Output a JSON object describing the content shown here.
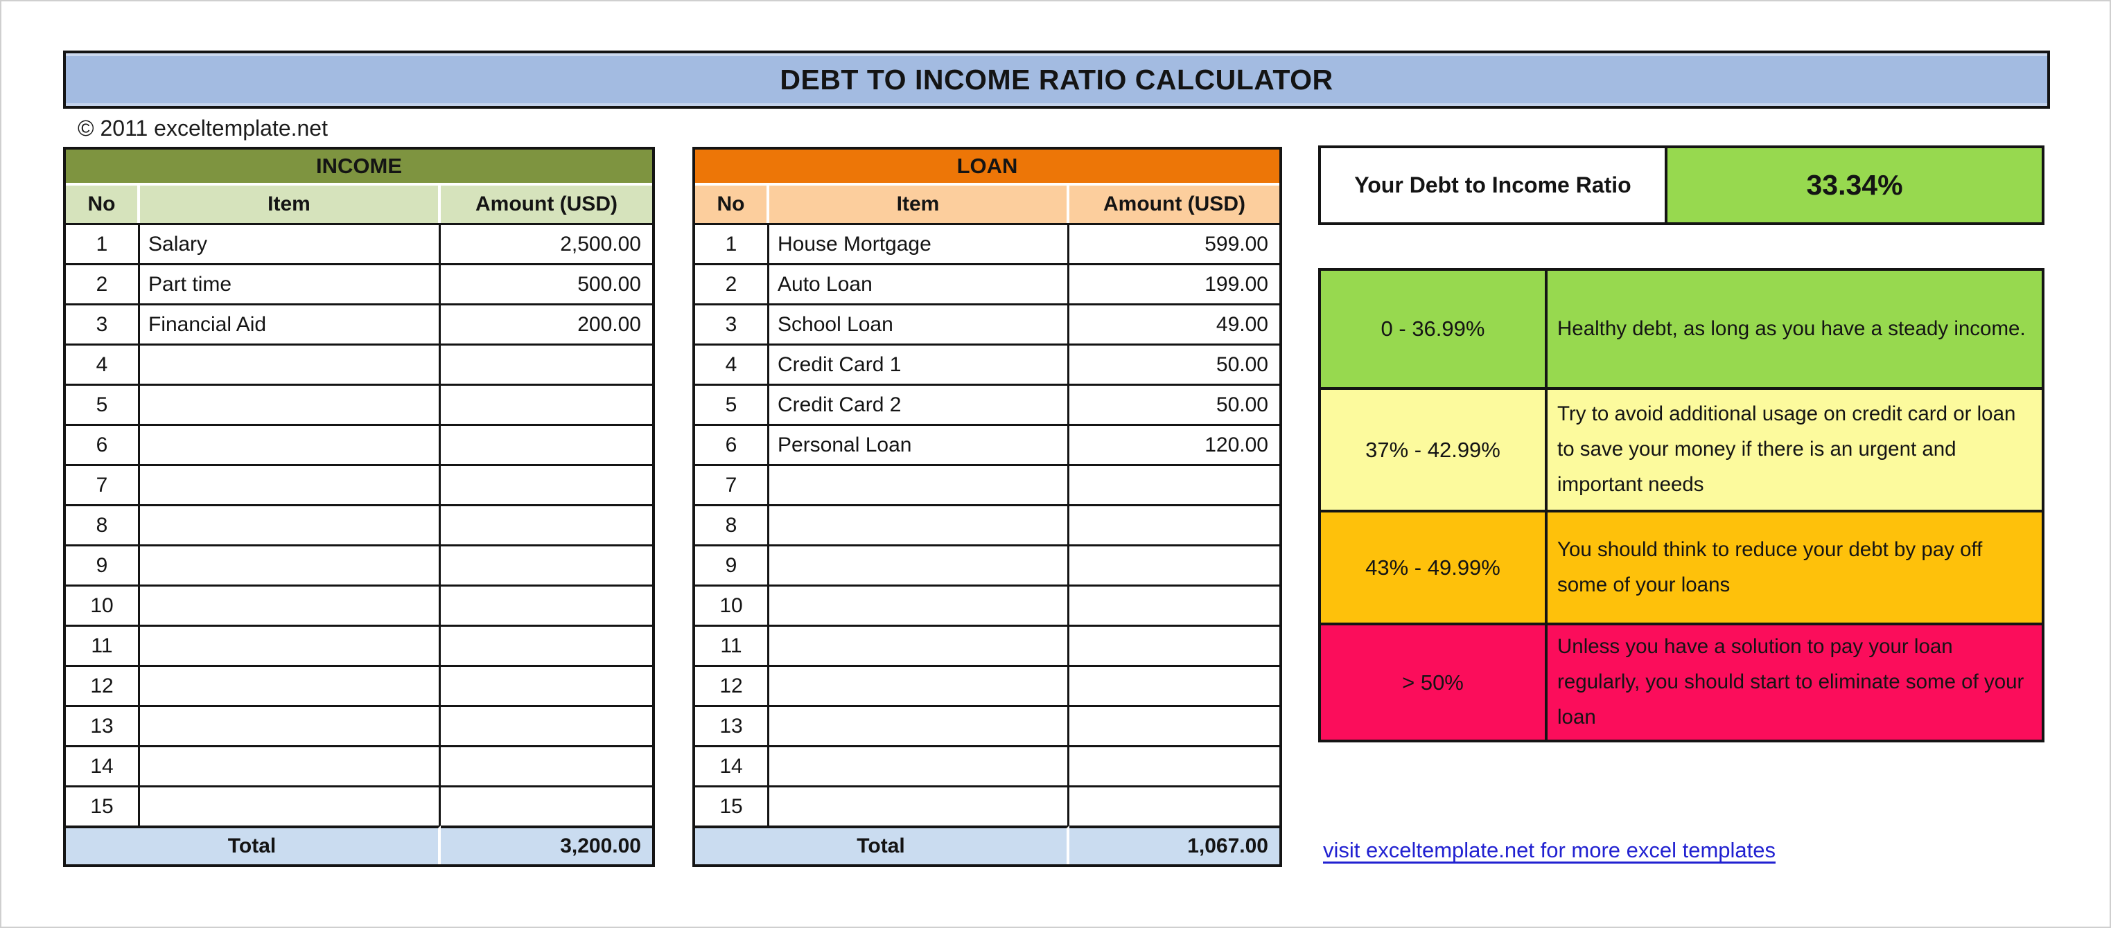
{
  "page": {
    "title": "DEBT TO INCOME RATIO CALCULATOR",
    "copyright": "© 2011 exceltemplate.net",
    "link": "visit exceltemplate.net for more excel templates"
  },
  "colors": {
    "title-bg": "#A3BBE1",
    "income-header": "#7E9440",
    "income-subheader": "#D6E3BC",
    "loan-header": "#ED7607",
    "loan-subheader": "#FCCE9D",
    "total-bg": "#CADCF0",
    "ratio-green": "#97D94F",
    "legend-yellow": "#FCFA9D",
    "legend-amber": "#FEC10B",
    "legend-pink": "#FB0D5B",
    "link-blue": "#2121D1"
  },
  "income_table": {
    "title": "INCOME",
    "columns": [
      "No",
      "Item",
      "Amount (USD)"
    ],
    "rows": [
      {
        "no": "1",
        "item": "Salary",
        "amount": "2,500.00"
      },
      {
        "no": "2",
        "item": "Part time",
        "amount": "500.00"
      },
      {
        "no": "3",
        "item": "Financial Aid",
        "amount": "200.00"
      },
      {
        "no": "4",
        "item": "",
        "amount": ""
      },
      {
        "no": "5",
        "item": "",
        "amount": ""
      },
      {
        "no": "6",
        "item": "",
        "amount": ""
      },
      {
        "no": "7",
        "item": "",
        "amount": ""
      },
      {
        "no": "8",
        "item": "",
        "amount": ""
      },
      {
        "no": "9",
        "item": "",
        "amount": ""
      },
      {
        "no": "10",
        "item": "",
        "amount": ""
      },
      {
        "no": "11",
        "item": "",
        "amount": ""
      },
      {
        "no": "12",
        "item": "",
        "amount": ""
      },
      {
        "no": "13",
        "item": "",
        "amount": ""
      },
      {
        "no": "14",
        "item": "",
        "amount": ""
      },
      {
        "no": "15",
        "item": "",
        "amount": ""
      }
    ],
    "total_label": "Total",
    "total_amount": "3,200.00"
  },
  "loan_table": {
    "title": "LOAN",
    "columns": [
      "No",
      "Item",
      "Amount (USD)"
    ],
    "rows": [
      {
        "no": "1",
        "item": "House Mortgage",
        "amount": "599.00"
      },
      {
        "no": "2",
        "item": "Auto Loan",
        "amount": "199.00"
      },
      {
        "no": "3",
        "item": "School Loan",
        "amount": "49.00"
      },
      {
        "no": "4",
        "item": "Credit Card 1",
        "amount": "50.00"
      },
      {
        "no": "5",
        "item": "Credit Card 2",
        "amount": "50.00"
      },
      {
        "no": "6",
        "item": "Personal Loan",
        "amount": "120.00"
      },
      {
        "no": "7",
        "item": "",
        "amount": ""
      },
      {
        "no": "8",
        "item": "",
        "amount": ""
      },
      {
        "no": "9",
        "item": "",
        "amount": ""
      },
      {
        "no": "10",
        "item": "",
        "amount": ""
      },
      {
        "no": "11",
        "item": "",
        "amount": ""
      },
      {
        "no": "12",
        "item": "",
        "amount": ""
      },
      {
        "no": "13",
        "item": "",
        "amount": ""
      },
      {
        "no": "14",
        "item": "",
        "amount": ""
      },
      {
        "no": "15",
        "item": "",
        "amount": ""
      }
    ],
    "total_label": "Total",
    "total_amount": "1,067.00"
  },
  "ratio": {
    "label": "Your Debt to Income Ratio",
    "value": "33.34%"
  },
  "legend": {
    "rows": [
      {
        "range": "0 - 36.99%",
        "description": "Healthy debt, as long as you have a steady income.",
        "color_key": "ratio-green",
        "height": 168
      },
      {
        "range": "37% - 42.99%",
        "description": "Try to avoid additional usage on credit card or loan to save your money if there is an urgent and important needs",
        "color_key": "legend-yellow",
        "height": 177
      },
      {
        "range": "43% - 49.99%",
        "description": "You should think to reduce your debt by pay off some of your loans",
        "color_key": "legend-amber",
        "height": 163
      },
      {
        "range": "> 50%",
        "description": "Unless you have a solution to pay your loan regularly, you should start to eliminate some of your loan",
        "color_key": "legend-pink",
        "height": 169
      }
    ]
  }
}
